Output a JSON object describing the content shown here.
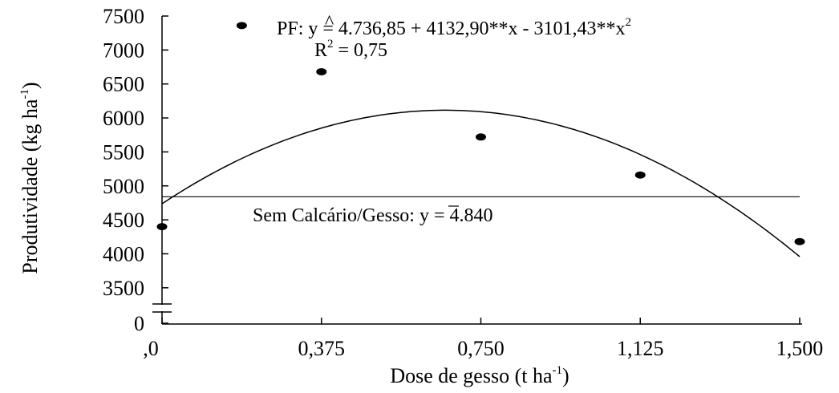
{
  "chart_data": {
    "type": "scatter",
    "xlabel": {
      "main": "Dose de gesso (t ha",
      "sup": "-1",
      "close": ")"
    },
    "ylabel": {
      "main": "Produtividade (kg ha",
      "sup": "-1",
      "close": ")"
    },
    "x_ticks": [
      {
        "value": 0,
        "label": ",0"
      },
      {
        "value": 0.375,
        "label": "0,375"
      },
      {
        "value": 0.75,
        "label": "0,750"
      },
      {
        "value": 1.125,
        "label": "1,125"
      },
      {
        "value": 1.5,
        "label": "1,500"
      }
    ],
    "y_ticks": [
      {
        "value": 0,
        "label": "0"
      },
      {
        "value": 3500,
        "label": "3500"
      },
      {
        "value": 4000,
        "label": "4000"
      },
      {
        "value": 4500,
        "label": "4500"
      },
      {
        "value": 5000,
        "label": "5000"
      },
      {
        "value": 5500,
        "label": "5500"
      },
      {
        "value": 6000,
        "label": "6000"
      },
      {
        "value": 6500,
        "label": "6500"
      },
      {
        "value": 7000,
        "label": "7000"
      },
      {
        "value": 7500,
        "label": "7500"
      }
    ],
    "xlim": [
      0,
      1.5
    ],
    "ylim": [
      3250,
      7500
    ],
    "y_axis_break": true,
    "points": [
      {
        "x": 0.0,
        "y": 4400
      },
      {
        "x": 0.1875,
        "y": 7360
      },
      {
        "x": 0.375,
        "y": 6680
      },
      {
        "x": 0.75,
        "y": 5720
      },
      {
        "x": 1.125,
        "y": 5160
      },
      {
        "x": 1.5,
        "y": 4180
      }
    ],
    "fit": {
      "label": "PF",
      "coefficients": {
        "a": 4736.85,
        "b": 4132.9,
        "c": -3101.43
      },
      "equation_parts": {
        "prefix": "PF: ",
        "yhat": "y",
        "hat": "^",
        "body": " = 4.736,85 + 4132,90**x - 3101,43**x",
        "exp": "2"
      },
      "r2": {
        "r": "R",
        "exp": "2",
        "value": " = 0,75"
      }
    },
    "baseline": {
      "value": 4840,
      "label_prefix": "Sem Calcário/Gesso: ",
      "ybar": "y",
      "label_suffix": " = 4.840"
    }
  }
}
